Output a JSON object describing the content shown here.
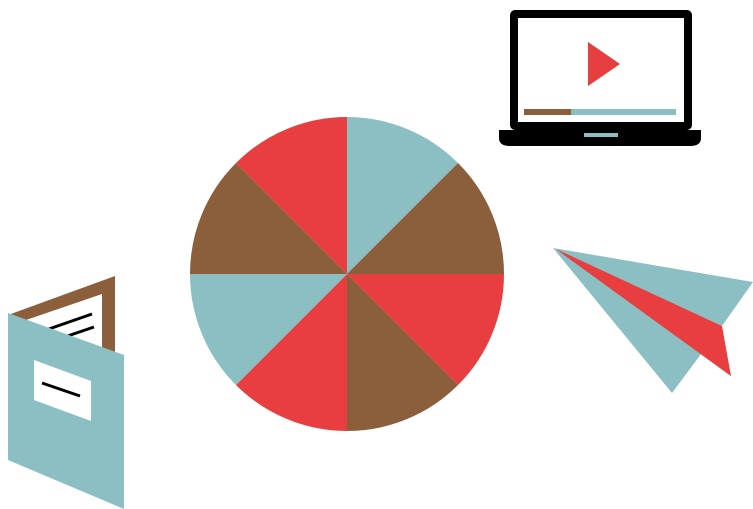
{
  "colors": {
    "background": "#ffffff",
    "teal": "#8bbfc3",
    "brown": "#8b5e3c",
    "red": "#e83e3f",
    "black": "#000000",
    "white": "#ffffff"
  },
  "icons": {
    "laptop": "laptop-play-icon",
    "play": "play-icon",
    "wheel": "segmented-wheel-icon",
    "booklet": "booklet-icon",
    "plane": "paper-plane-icon"
  },
  "video_progress": {
    "played_fraction": 0.31
  },
  "wheel": {
    "segments": [
      {
        "color": "teal"
      },
      {
        "color": "brown"
      },
      {
        "color": "red"
      },
      {
        "color": "brown"
      },
      {
        "color": "red"
      },
      {
        "color": "teal"
      },
      {
        "color": "brown"
      },
      {
        "color": "red"
      }
    ]
  }
}
